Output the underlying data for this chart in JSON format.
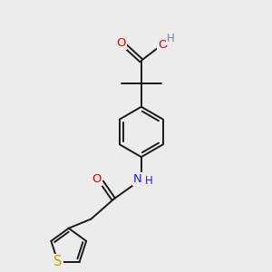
{
  "background_color": "#ececec",
  "bond_color": "#1a1a1a",
  "bond_width": 1.4,
  "atom_colors": {
    "O": "#e00000",
    "N": "#2020dd",
    "S": "#b8a000",
    "H_O": "#708090",
    "H_N": "#2020dd"
  },
  "font_size": 9.5
}
